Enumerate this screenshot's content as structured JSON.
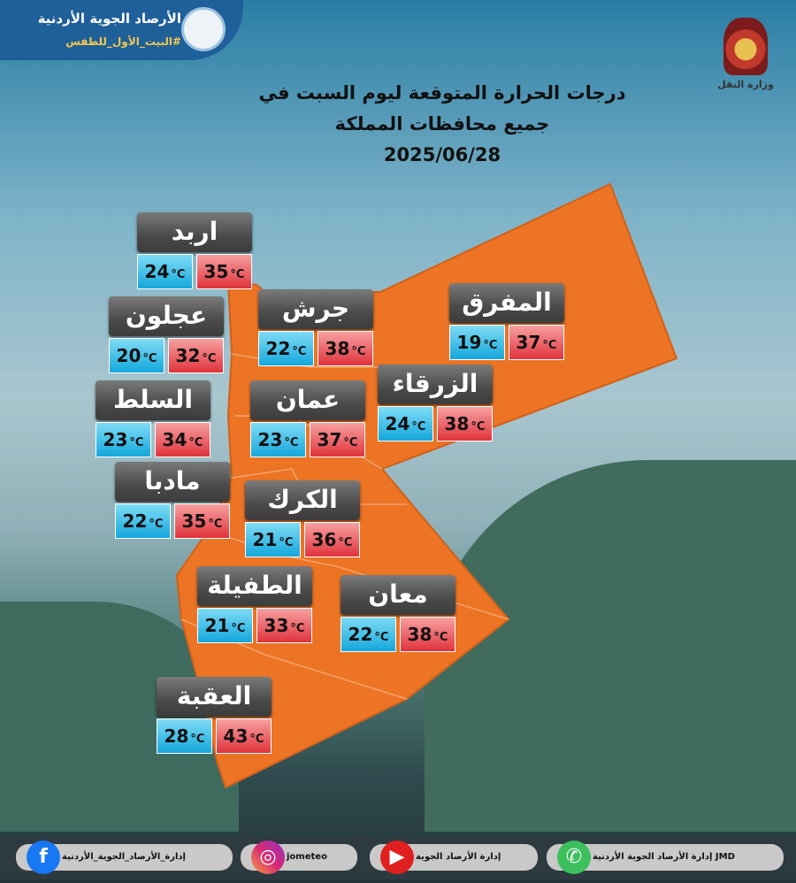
{
  "brand": {
    "name": "الأرصاد الجوية الأردنية",
    "hashtag": "#البيت_الأول_للطقس"
  },
  "ministry": {
    "name": "وزارة النقل"
  },
  "title": {
    "line1": "درجات الحرارة المتوقعة ليوم السبت في",
    "line2": "جميع محافظات المملكة",
    "date": "2025/06/28"
  },
  "unit": "°C",
  "colors": {
    "map": "#ec7424",
    "min": "#14a7dc",
    "max": "#e0333c"
  },
  "cities": [
    {
      "name": "اربد",
      "min": "24",
      "max": "35"
    },
    {
      "name": "عجلون",
      "min": "20",
      "max": "32"
    },
    {
      "name": "جرش",
      "min": "22",
      "max": "38"
    },
    {
      "name": "المفرق",
      "min": "19",
      "max": "37"
    },
    {
      "name": "الزرقاء",
      "min": "24",
      "max": "38"
    },
    {
      "name": "السلط",
      "min": "23",
      "max": "34"
    },
    {
      "name": "عمان",
      "min": "23",
      "max": "37"
    },
    {
      "name": "مادبا",
      "min": "22",
      "max": "35"
    },
    {
      "name": "الكرك",
      "min": "21",
      "max": "36"
    },
    {
      "name": "الطفيلة",
      "min": "21",
      "max": "33"
    },
    {
      "name": "معان",
      "min": "22",
      "max": "38"
    },
    {
      "name": "العقبة",
      "min": "28",
      "max": "43"
    }
  ],
  "footer": [
    {
      "icon": "facebook-icon",
      "text": "إدارة_الأرصاد_الجوية_الأردنية"
    },
    {
      "icon": "instagram-icon",
      "text": "jometeo"
    },
    {
      "icon": "youtube-icon",
      "text": "إدارة الأرصاد الجوية"
    },
    {
      "icon": "whatsapp-icon",
      "text": "إدارة الأرصاد الجوية الأردنية JMD"
    }
  ]
}
